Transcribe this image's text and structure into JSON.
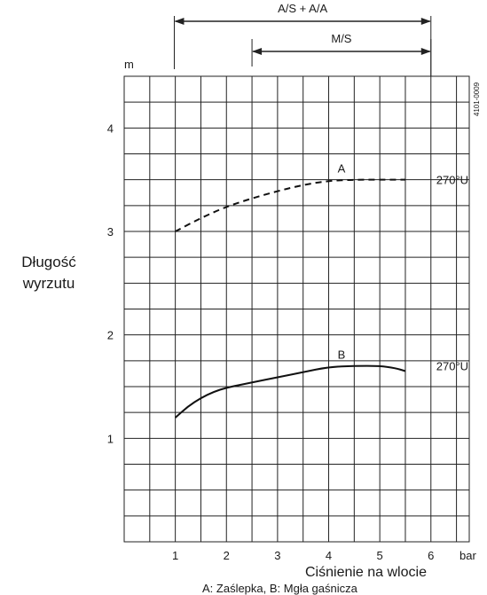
{
  "chart_data": {
    "type": "line",
    "ylabel_line1": "Długość",
    "ylabel_line2": "wyrzutu",
    "y_unit": "m",
    "xlabel": "Ciśnienie na wlocie",
    "x_unit": "bar",
    "x_ticks": [
      1,
      2,
      3,
      4,
      5,
      6
    ],
    "y_ticks": [
      1,
      2,
      3,
      4
    ],
    "xlim": [
      0,
      6.75
    ],
    "ylim": [
      0,
      4.5
    ],
    "grid": true,
    "doc_code": "4101-0009",
    "legend_note": "A: Zaślepka, B: Mgła gaśnicza",
    "ranges": [
      {
        "label": "A/S + A/A",
        "from": 0.98,
        "to": 6
      },
      {
        "label": "M/S",
        "from": 2.5,
        "to": 6
      }
    ],
    "series": [
      {
        "name": "A",
        "end_label": "270°U",
        "style": "dashed",
        "points": [
          [
            1,
            3.0
          ],
          [
            1.5,
            3.13
          ],
          [
            2,
            3.24
          ],
          [
            2.5,
            3.32
          ],
          [
            3,
            3.39
          ],
          [
            3.5,
            3.45
          ],
          [
            4,
            3.49
          ],
          [
            4.5,
            3.5
          ],
          [
            5,
            3.5
          ],
          [
            5.5,
            3.5
          ]
        ]
      },
      {
        "name": "B",
        "end_label": "270°U",
        "style": "solid",
        "points": [
          [
            1,
            1.2
          ],
          [
            1.25,
            1.31
          ],
          [
            1.5,
            1.39
          ],
          [
            1.75,
            1.45
          ],
          [
            2,
            1.49
          ],
          [
            2.5,
            1.54
          ],
          [
            3,
            1.59
          ],
          [
            3.5,
            1.64
          ],
          [
            4,
            1.69
          ],
          [
            4.5,
            1.7
          ],
          [
            5,
            1.7
          ],
          [
            5.3,
            1.68
          ],
          [
            5.5,
            1.65
          ]
        ]
      }
    ]
  }
}
